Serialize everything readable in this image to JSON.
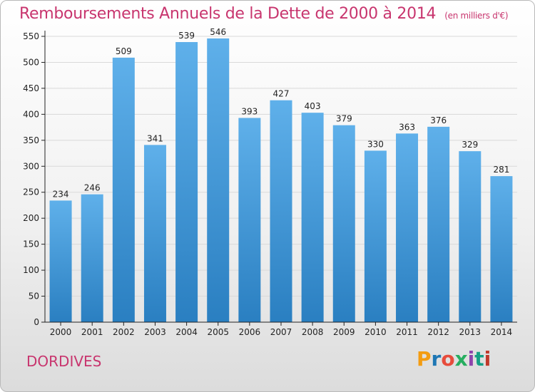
{
  "title": "Remboursements Annuels de la Dette de 2000 à 2014",
  "unit": "(en milliers d'€)",
  "location": "DORDIVES",
  "logo": {
    "text": "Proxiti",
    "colors": [
      "#f39c12",
      "#1f77b4",
      "#e74c3c",
      "#27ae60",
      "#8e44ad",
      "#16a085",
      "#c0392b"
    ]
  },
  "colors": {
    "title": "#c8356e",
    "bar_top": "#5fb0ea",
    "bar_bottom": "#2a7fc1",
    "grid": "#d9d9d9",
    "axis": "#222222"
  },
  "chart_data": {
    "type": "bar",
    "categories": [
      "2000",
      "2001",
      "2002",
      "2003",
      "2004",
      "2005",
      "2006",
      "2007",
      "2008",
      "2009",
      "2010",
      "2011",
      "2012",
      "2013",
      "2014"
    ],
    "values": [
      234,
      246,
      509,
      341,
      539,
      546,
      393,
      427,
      403,
      379,
      330,
      363,
      376,
      329,
      281
    ],
    "ylim": [
      0,
      550
    ],
    "yticks": [
      0,
      50,
      100,
      150,
      200,
      250,
      300,
      350,
      400,
      450,
      500,
      550
    ],
    "grid": true
  }
}
